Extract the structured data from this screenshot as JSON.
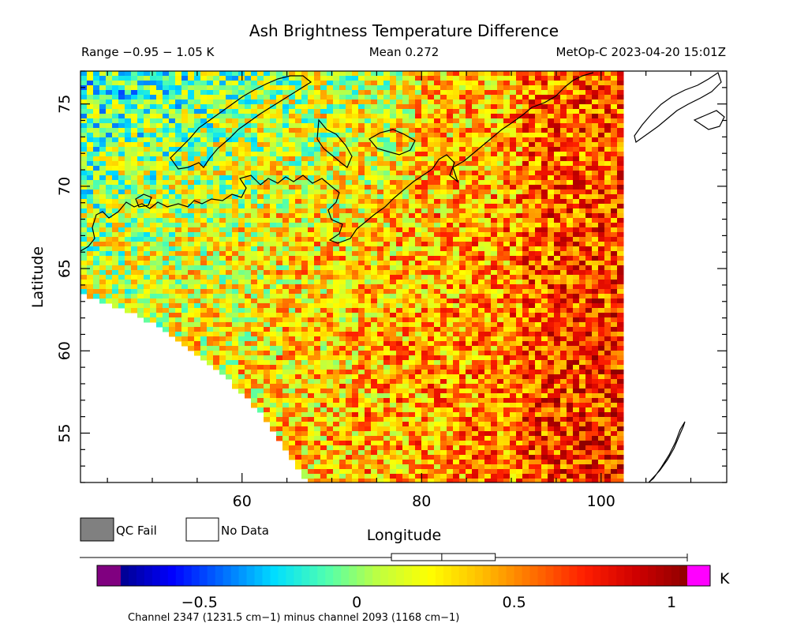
{
  "chart_data": {
    "type": "heatmap",
    "title": "Ash Brightness Temperature Difference",
    "subtitle_left": "Range −0.95 − 1.05 K",
    "subtitle_center": "Mean 0.272",
    "subtitle_right": "MetOp-C 2023-04-20 15:01Z",
    "xlabel": "Longitude",
    "ylabel": "Latitude",
    "xlim": [
      42,
      114
    ],
    "ylim": [
      52,
      77
    ],
    "x_ticks": [
      60,
      80,
      100
    ],
    "y_ticks": [
      55,
      60,
      65,
      70,
      75
    ],
    "x_tick_labels": [
      "60",
      "80",
      "100"
    ],
    "y_tick_labels": [
      "55",
      "60",
      "65",
      "70",
      "75"
    ],
    "stats": {
      "min": -0.95,
      "max": 1.05,
      "mean": 0.272,
      "box_q1": 0.11,
      "box_median": 0.27,
      "box_q3": 0.44
    },
    "colorbar": {
      "min": -0.75,
      "max": 1.05,
      "ticks": [
        -0.5,
        0,
        0.5,
        1
      ],
      "tick_labels": [
        "−0.5",
        "0",
        "0.5",
        "1"
      ],
      "unit": "K",
      "colors": [
        "#00008f",
        "#0000ff",
        "#006fff",
        "#00dfff",
        "#50ffaf",
        "#bfff40",
        "#ffff00",
        "#ffbf00",
        "#ff7000",
        "#ff1f00",
        "#cf0000",
        "#8f0000"
      ],
      "underflow_color": "#800080",
      "overflow_color": "#ff00ff"
    },
    "legend": [
      {
        "label": "QC Fail",
        "color": "#808080"
      },
      {
        "label": "No Data",
        "color": "#ffffff"
      }
    ],
    "footnote": "Channel 2347 (1231.5 cm−1) minus channel 2093 (1168 cm−1)"
  }
}
